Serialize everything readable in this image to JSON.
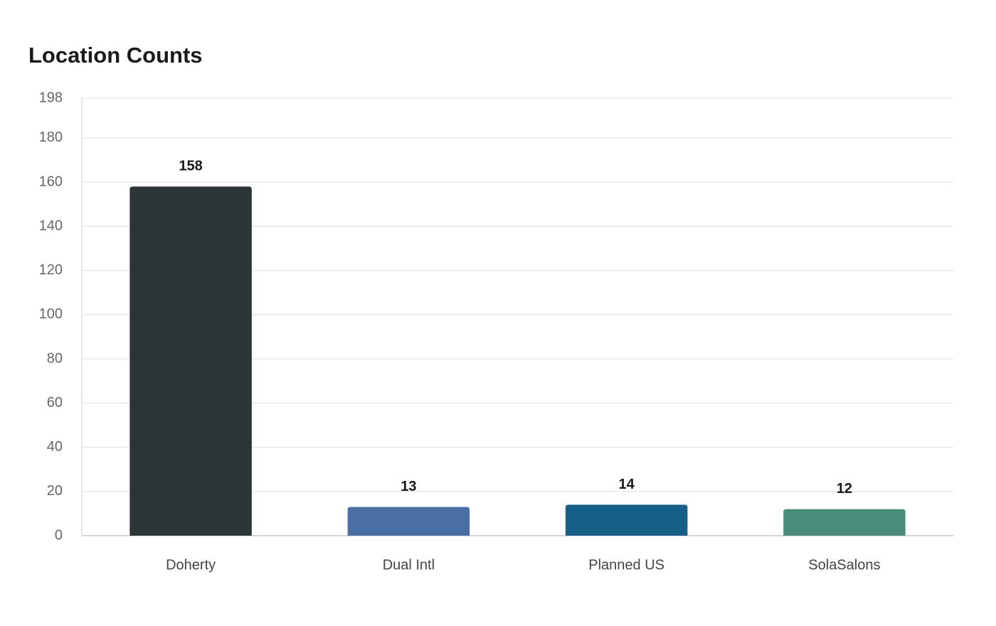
{
  "chart_data": {
    "type": "bar",
    "title": "Location Counts",
    "categories": [
      "Doherty",
      "Dual Intl",
      "Planned US",
      "SolaSalons"
    ],
    "values": [
      158,
      13,
      14,
      12
    ],
    "colors": [
      "#2d3436",
      "#4a6fa5",
      "#166088",
      "#4a8c7a"
    ],
    "ylim": [
      0,
      198
    ],
    "yticks": [
      0,
      20,
      40,
      60,
      80,
      100,
      120,
      140,
      160,
      180,
      198
    ],
    "grid": true
  }
}
